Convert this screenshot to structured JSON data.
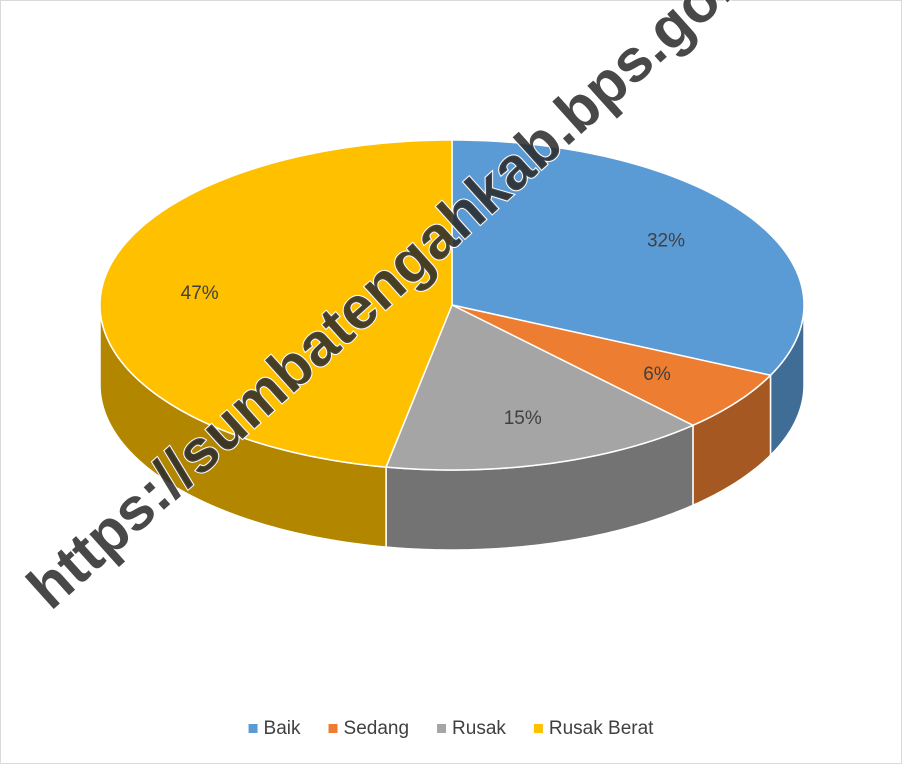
{
  "chart_data": {
    "type": "pie",
    "categories": [
      "Baik",
      "Sedang",
      "Rusak",
      "Rusak Berat"
    ],
    "values": [
      32,
      6,
      15,
      47
    ],
    "value_labels": [
      "32%",
      "6%",
      "15%",
      "47%"
    ],
    "colors": [
      "#5b9bd5",
      "#ed7d31",
      "#a5a5a5",
      "#ffc000"
    ],
    "legend": "bottom",
    "watermark": "https://sumbatengahkab.bps.go.id"
  }
}
